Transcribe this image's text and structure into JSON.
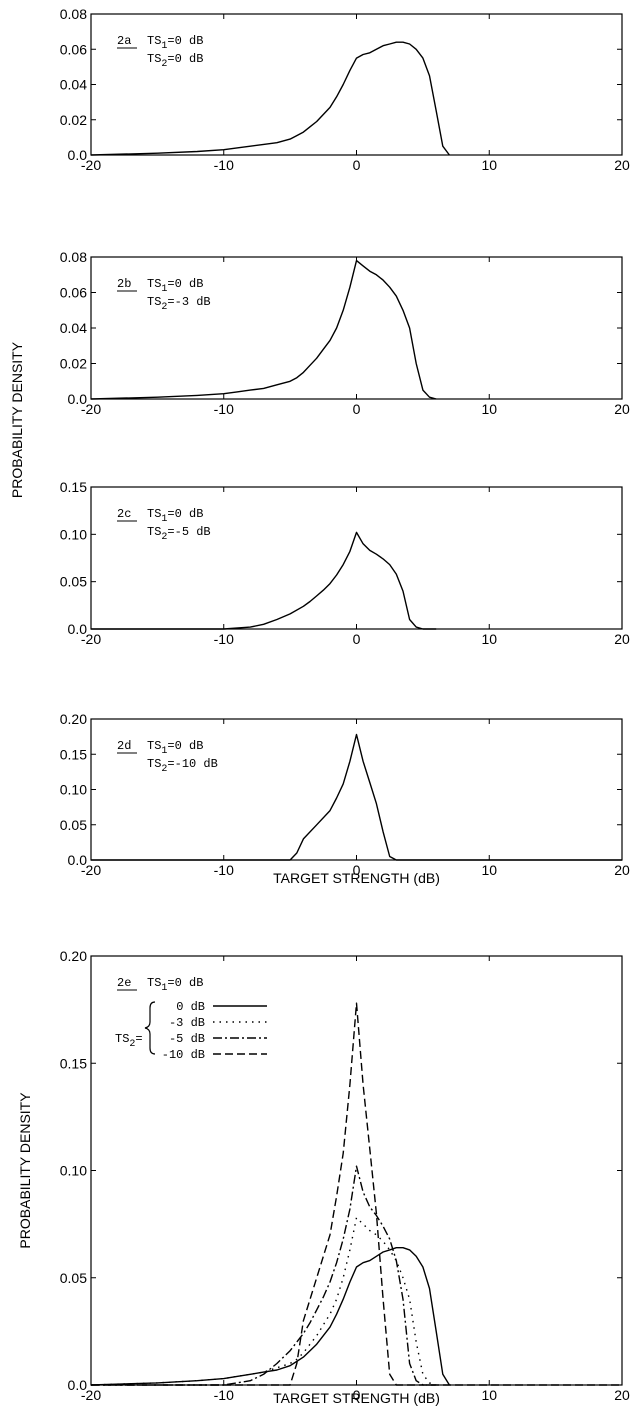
{
  "ylabel_shared": "PROBABILITY DENSITY",
  "chart_data": [
    {
      "type": "line",
      "panel_label": "2a",
      "annotation_lines": [
        "TS1=0 dB",
        "TS2=0 dB"
      ],
      "xlabel": "",
      "ylabel": "",
      "xlim": [
        -20,
        20
      ],
      "ylim": [
        0,
        0.08
      ],
      "x_ticks": [
        "-20",
        "-10",
        "0",
        "10",
        "20"
      ],
      "y_ticks": [
        "0.0",
        "0.02",
        "0.04",
        "0.06",
        "0.08"
      ],
      "series": [
        {
          "style": "solid",
          "x": [
            -20,
            -15,
            -12,
            -10,
            -9,
            -8,
            -7,
            -6,
            -5,
            -4.5,
            -4,
            -3.5,
            -3,
            -2.5,
            -2,
            -1.5,
            -1,
            -0.5,
            0,
            0.5,
            1,
            1.5,
            2,
            2.5,
            3,
            3.5,
            4,
            4.5,
            5,
            5.5,
            6,
            6.5,
            7
          ],
          "y": [
            0,
            0.001,
            0.002,
            0.003,
            0.004,
            0.005,
            0.006,
            0.007,
            0.009,
            0.011,
            0.013,
            0.016,
            0.019,
            0.023,
            0.027,
            0.033,
            0.04,
            0.048,
            0.055,
            0.057,
            0.058,
            0.06,
            0.062,
            0.063,
            0.064,
            0.064,
            0.063,
            0.06,
            0.055,
            0.045,
            0.025,
            0.005,
            0
          ]
        }
      ]
    },
    {
      "type": "line",
      "panel_label": "2b",
      "annotation_lines": [
        "TS1=0 dB",
        "TS2=-3 dB"
      ],
      "xlabel": "",
      "ylabel": "",
      "xlim": [
        -20,
        20
      ],
      "ylim": [
        0,
        0.08
      ],
      "x_ticks": [
        "-20",
        "-10",
        "0",
        "10",
        "20"
      ],
      "y_ticks": [
        "0.0",
        "0.02",
        "0.04",
        "0.06",
        "0.08"
      ],
      "series": [
        {
          "style": "solid",
          "x": [
            -20,
            -15,
            -12,
            -10,
            -9,
            -8,
            -7,
            -6,
            -5,
            -4.5,
            -4,
            -3.5,
            -3,
            -2.5,
            -2,
            -1.5,
            -1,
            -0.5,
            0,
            0.5,
            1,
            1.5,
            2,
            2.5,
            3,
            3.5,
            4,
            4.5,
            5,
            5.5,
            6
          ],
          "y": [
            0,
            0.001,
            0.002,
            0.003,
            0.004,
            0.005,
            0.006,
            0.008,
            0.01,
            0.012,
            0.015,
            0.019,
            0.023,
            0.028,
            0.033,
            0.04,
            0.05,
            0.063,
            0.078,
            0.075,
            0.072,
            0.07,
            0.067,
            0.063,
            0.058,
            0.05,
            0.04,
            0.02,
            0.005,
            0.001,
            0
          ]
        }
      ]
    },
    {
      "type": "line",
      "panel_label": "2c",
      "annotation_lines": [
        "TS1=0 dB",
        "TS2=-5 dB"
      ],
      "xlabel": "",
      "ylabel": "",
      "xlim": [
        -20,
        20
      ],
      "ylim": [
        0,
        0.15
      ],
      "x_ticks": [
        "-20",
        "-10",
        "0",
        "10",
        "20"
      ],
      "y_ticks": [
        "0.0",
        "0.05",
        "0.10",
        "0.15"
      ],
      "series": [
        {
          "style": "solid",
          "x": [
            -20,
            -10,
            -8,
            -7,
            -6,
            -5,
            -4,
            -3.5,
            -3,
            -2.5,
            -2,
            -1.5,
            -1,
            -0.5,
            0,
            0.5,
            1,
            1.5,
            2,
            2.5,
            3,
            3.5,
            4,
            4.5,
            5,
            6
          ],
          "y": [
            0,
            0,
            0.002,
            0.005,
            0.01,
            0.016,
            0.024,
            0.029,
            0.035,
            0.041,
            0.048,
            0.057,
            0.068,
            0.082,
            0.102,
            0.09,
            0.083,
            0.079,
            0.074,
            0.068,
            0.058,
            0.04,
            0.01,
            0.002,
            0,
            0
          ]
        }
      ]
    },
    {
      "type": "line",
      "panel_label": "2d",
      "annotation_lines": [
        "TS1=0 dB",
        "TS2=-10 dB"
      ],
      "xlabel": "TARGET  STRENGTH (dB)",
      "ylabel": "",
      "xlim": [
        -20,
        20
      ],
      "ylim": [
        0,
        0.2
      ],
      "x_ticks": [
        "-20",
        "-10",
        "0",
        "10",
        "20"
      ],
      "y_ticks": [
        "0.0",
        "0.05",
        "0.10",
        "0.15",
        "0.20"
      ],
      "series": [
        {
          "style": "solid",
          "x": [
            -20,
            -5,
            -4.5,
            -4,
            -3,
            -2,
            -1.5,
            -1,
            -0.5,
            0,
            0.5,
            1,
            1.5,
            2,
            2.5,
            3,
            20
          ],
          "y": [
            0,
            0,
            0.01,
            0.03,
            0.05,
            0.07,
            0.088,
            0.108,
            0.14,
            0.178,
            0.14,
            0.11,
            0.08,
            0.04,
            0.005,
            0,
            0
          ]
        }
      ]
    },
    {
      "type": "line",
      "panel_label": "2e",
      "annotation_lines": [
        "TS1=0 dB"
      ],
      "legend_prefix": "TS2=",
      "xlabel": "TARGET  STRENGTH (dB)",
      "ylabel": "PROBABILITY DENSITY",
      "xlim": [
        -20,
        20
      ],
      "ylim": [
        0,
        0.2
      ],
      "x_ticks": [
        "-20",
        "-10",
        "0",
        "10",
        "20"
      ],
      "y_ticks": [
        "0.0",
        "0.05",
        "0.10",
        "0.15",
        "0.20"
      ],
      "series": [
        {
          "name": "0 dB",
          "style": "solid",
          "x": [
            -20,
            -15,
            -12,
            -10,
            -9,
            -8,
            -7,
            -6,
            -5,
            -4.5,
            -4,
            -3.5,
            -3,
            -2.5,
            -2,
            -1.5,
            -1,
            -0.5,
            0,
            0.5,
            1,
            1.5,
            2,
            2.5,
            3,
            3.5,
            4,
            4.5,
            5,
            5.5,
            6,
            6.5,
            7
          ],
          "y": [
            0,
            0.001,
            0.002,
            0.003,
            0.004,
            0.005,
            0.006,
            0.007,
            0.009,
            0.011,
            0.013,
            0.016,
            0.019,
            0.023,
            0.027,
            0.033,
            0.04,
            0.048,
            0.055,
            0.057,
            0.058,
            0.06,
            0.062,
            0.063,
            0.064,
            0.064,
            0.063,
            0.06,
            0.055,
            0.045,
            0.025,
            0.005,
            0
          ]
        },
        {
          "name": "-3 dB",
          "style": "dotted",
          "x": [
            -20,
            -15,
            -12,
            -10,
            -9,
            -8,
            -7,
            -6,
            -5,
            -4.5,
            -4,
            -3.5,
            -3,
            -2.5,
            -2,
            -1.5,
            -1,
            -0.5,
            0,
            0.5,
            1,
            1.5,
            2,
            2.5,
            3,
            3.5,
            4,
            4.5,
            5,
            5.5,
            6
          ],
          "y": [
            0,
            0.001,
            0.002,
            0.003,
            0.004,
            0.005,
            0.006,
            0.008,
            0.01,
            0.012,
            0.015,
            0.019,
            0.023,
            0.028,
            0.033,
            0.04,
            0.05,
            0.063,
            0.078,
            0.075,
            0.072,
            0.07,
            0.067,
            0.063,
            0.058,
            0.05,
            0.04,
            0.02,
            0.005,
            0.001,
            0
          ]
        },
        {
          "name": "-5 dB",
          "style": "dashdot",
          "x": [
            -20,
            -10,
            -8,
            -7,
            -6,
            -5,
            -4,
            -3.5,
            -3,
            -2.5,
            -2,
            -1.5,
            -1,
            -0.5,
            0,
            0.5,
            1,
            1.5,
            2,
            2.5,
            3,
            3.5,
            4,
            4.5,
            5,
            6
          ],
          "y": [
            0,
            0,
            0.002,
            0.005,
            0.01,
            0.016,
            0.024,
            0.029,
            0.035,
            0.041,
            0.048,
            0.057,
            0.068,
            0.082,
            0.102,
            0.09,
            0.083,
            0.079,
            0.074,
            0.068,
            0.058,
            0.04,
            0.01,
            0.002,
            0,
            0
          ]
        },
        {
          "name": "-10 dB",
          "style": "dashed",
          "x": [
            -20,
            -5,
            -4.5,
            -4,
            -3,
            -2,
            -1.5,
            -1,
            -0.5,
            0,
            0.5,
            1,
            1.5,
            2,
            2.5,
            3,
            20
          ],
          "y": [
            0,
            0,
            0.01,
            0.03,
            0.05,
            0.07,
            0.088,
            0.108,
            0.14,
            0.178,
            0.14,
            0.11,
            0.08,
            0.04,
            0.005,
            0,
            0
          ]
        }
      ]
    }
  ]
}
